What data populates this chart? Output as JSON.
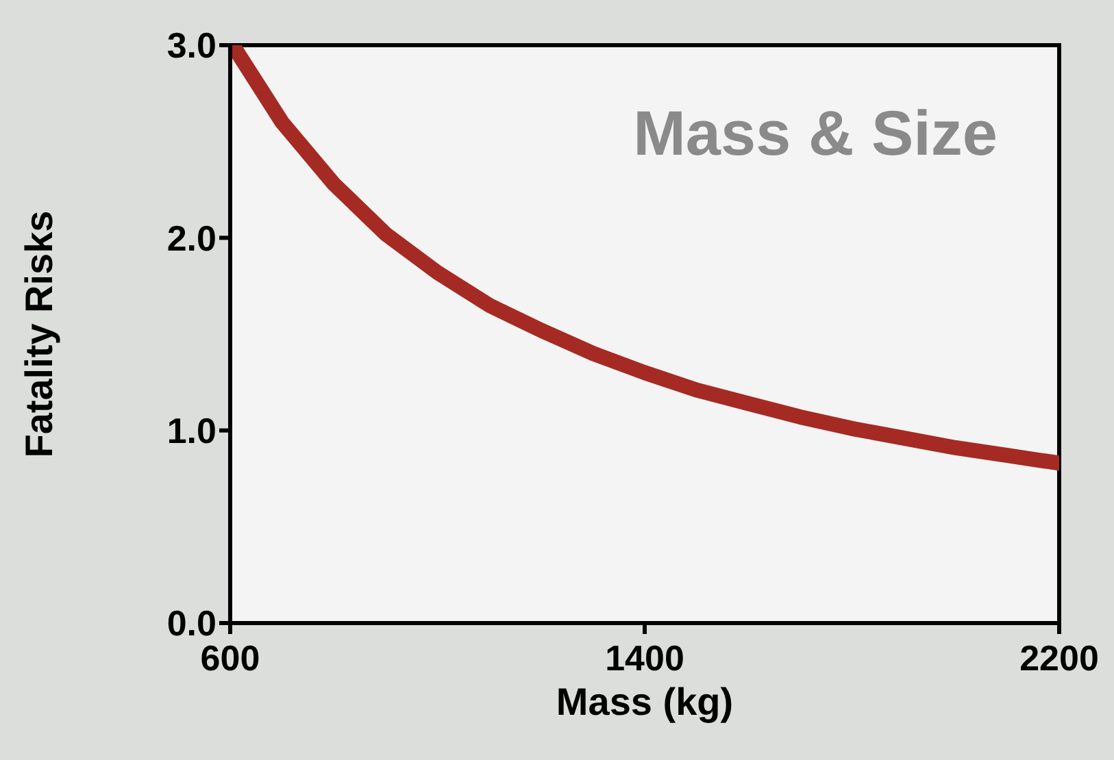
{
  "chart_data": {
    "type": "line",
    "xlabel": "Mass (kg)",
    "ylabel": "Fatality Risks",
    "annotations": [
      "Mass & Size"
    ],
    "x": [
      605,
      700,
      800,
      900,
      1000,
      1100,
      1200,
      1300,
      1400,
      1500,
      1600,
      1700,
      1800,
      1900,
      2000,
      2100,
      2200
    ],
    "series": [
      {
        "color": "#a52a23",
        "values": [
          3.0,
          2.6,
          2.28,
          2.02,
          1.82,
          1.65,
          1.52,
          1.4,
          1.3,
          1.21,
          1.14,
          1.07,
          1.01,
          0.96,
          0.91,
          0.87,
          0.83
        ]
      }
    ],
    "xlim": [
      600,
      2200
    ],
    "xticks": [
      600,
      1400,
      2200
    ],
    "ylim": [
      0,
      3
    ],
    "yticks": [
      {
        "value": 0,
        "label": "0.0"
      },
      {
        "value": 1,
        "label": "1.0"
      },
      {
        "value": 2,
        "label": "2.0"
      },
      {
        "value": 3,
        "label": "3.0"
      }
    ],
    "marker": "none",
    "line_style": "solid"
  }
}
